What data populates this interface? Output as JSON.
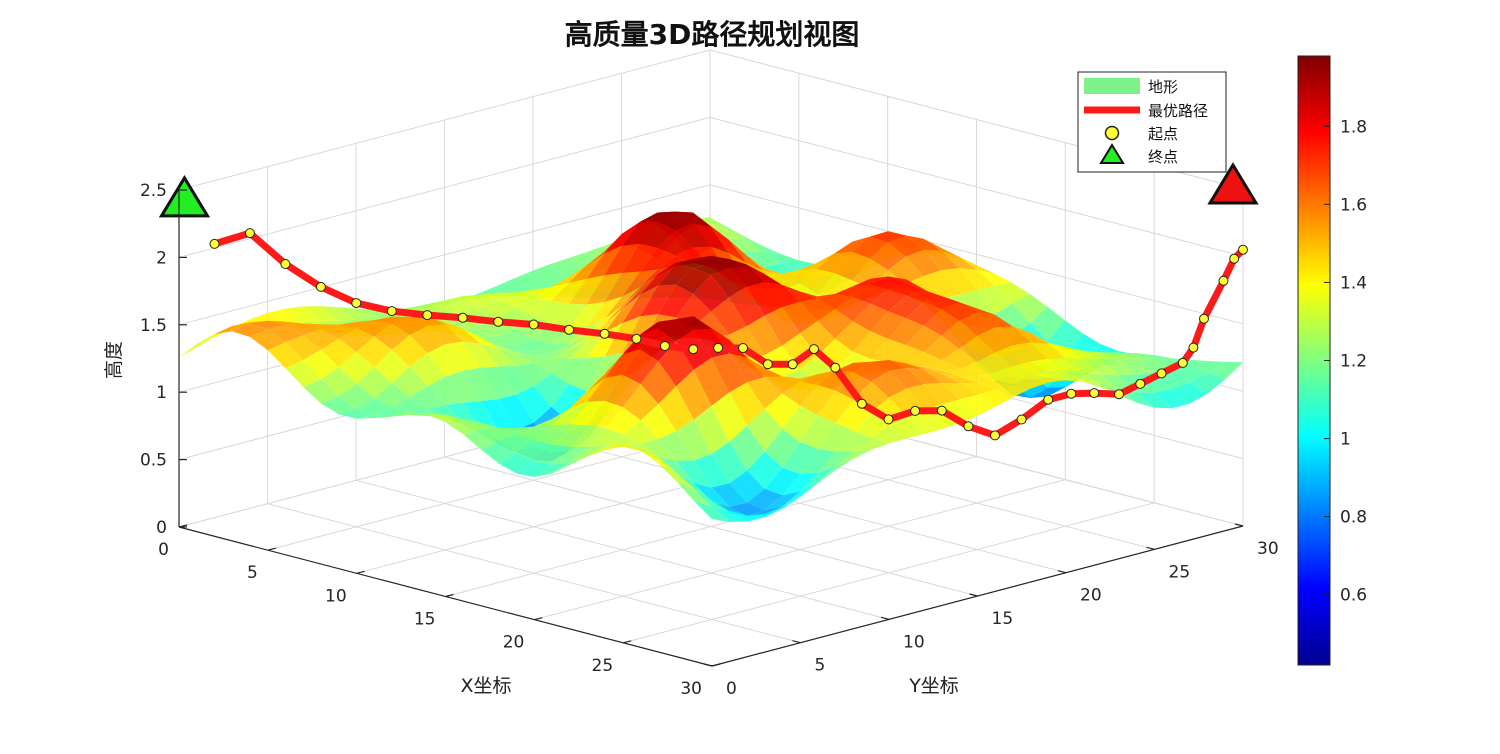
{
  "chart_data": {
    "type": "surface3d",
    "title": "高质量3D路径规划视图",
    "xlabel": "X坐标",
    "ylabel": "Y坐标",
    "zlabel": "高度",
    "xlim": [
      0,
      30
    ],
    "ylim": [
      0,
      30
    ],
    "zlim": [
      0,
      2.5
    ],
    "x_ticks": [
      "0",
      "5",
      "10",
      "15",
      "20",
      "25",
      "30"
    ],
    "y_ticks": [
      "0",
      "5",
      "10",
      "15",
      "20",
      "25",
      "30"
    ],
    "z_ticks": [
      "0",
      "0.5",
      "1",
      "1.5",
      "2",
      "2.5"
    ],
    "grid": true,
    "colormap": "jet",
    "colorbar": {
      "range": [
        0.42,
        1.98
      ],
      "ticks": [
        "0.6",
        "0.8",
        "1",
        "1.2",
        "1.4",
        "1.6",
        "1.8"
      ],
      "tick_values": [
        0.6,
        0.8,
        1.0,
        1.2,
        1.4,
        1.6,
        1.8
      ]
    },
    "legend": {
      "placement": "top-right",
      "entries": [
        {
          "label": "地形",
          "color": "#7df28a",
          "kind": "patch"
        },
        {
          "label": "最优路径",
          "color": "#ff1a1a",
          "kind": "line"
        },
        {
          "label": "起点",
          "color": "#ffff33",
          "kind": "circle"
        },
        {
          "label": "终点",
          "color": "#22ee22",
          "kind": "triangle"
        }
      ]
    },
    "start_point": {
      "x": 1,
      "y": 1,
      "z": 2.3
    },
    "end_point": {
      "x": 30,
      "y": 30,
      "z": 2.3
    },
    "path": [
      [
        1,
        1,
        2.1
      ],
      [
        2,
        2,
        2.18
      ],
      [
        3,
        3,
        1.95
      ],
      [
        4,
        4,
        1.78
      ],
      [
        5,
        5,
        1.66
      ],
      [
        6,
        6,
        1.6
      ],
      [
        7,
        7,
        1.57
      ],
      [
        8,
        8,
        1.55
      ],
      [
        9,
        9,
        1.52
      ],
      [
        10,
        10,
        1.5
      ],
      [
        11,
        11,
        1.46
      ],
      [
        12,
        12,
        1.43
      ],
      [
        13,
        12.8,
        1.4
      ],
      [
        14,
        13.4,
        1.36
      ],
      [
        15,
        14,
        1.35
      ],
      [
        16,
        14.4,
        1.38
      ],
      [
        17,
        14.8,
        1.4
      ],
      [
        18,
        15.2,
        1.3
      ],
      [
        19,
        15.6,
        1.32
      ],
      [
        20,
        15.8,
        1.46
      ],
      [
        21,
        16,
        1.35
      ],
      [
        22,
        16.5,
        1.1
      ],
      [
        23,
        17,
        1.0
      ],
      [
        24,
        17.5,
        1.08
      ],
      [
        25,
        18,
        1.1
      ],
      [
        26,
        18.5,
        1.0
      ],
      [
        27,
        19,
        0.95
      ],
      [
        27.5,
        20,
        1.05
      ],
      [
        28,
        21,
        1.18
      ],
      [
        28.3,
        22,
        1.2
      ],
      [
        28.6,
        23,
        1.18
      ],
      [
        29,
        24,
        1.15
      ],
      [
        29.2,
        25,
        1.2
      ],
      [
        29.4,
        26,
        1.25
      ],
      [
        29.6,
        27,
        1.3
      ],
      [
        29.7,
        27.5,
        1.4
      ],
      [
        29.8,
        28,
        1.6
      ],
      [
        29.9,
        29,
        1.85
      ],
      [
        30,
        29.5,
        2.0
      ],
      [
        30,
        30,
        2.05
      ]
    ]
  }
}
